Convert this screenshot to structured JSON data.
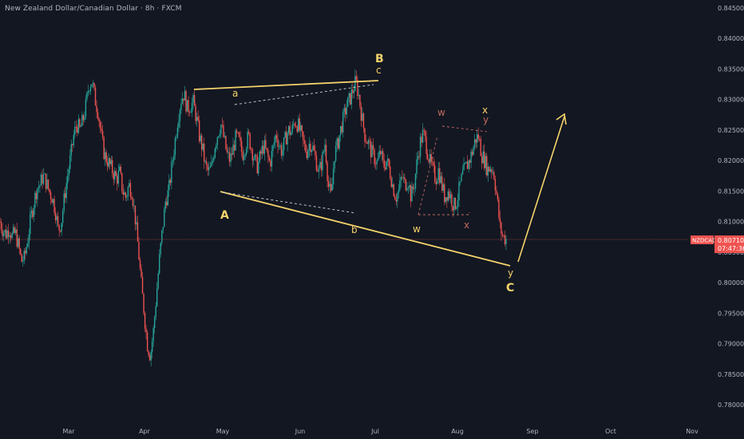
{
  "header": {
    "title": "New Zealand Dollar/Canadian Dollar · 8h · FXCM"
  },
  "colors": {
    "background": "#131722",
    "candle_up": "#26a69a",
    "candle_down": "#ef5350",
    "wave_line": "#f5d36b",
    "wave_label": "#f5d36b",
    "sub_label": "#c06a5e",
    "dashed": "#b7a6c8",
    "price_line": "#ef5350",
    "axis_text": "#b2b5be",
    "price_tag_bg": "#ef5350"
  },
  "price_tag": {
    "symbol": "NZDCAD",
    "price": "0.80710",
    "countdown": "07:47:36"
  },
  "chart_data": {
    "type": "candlestick",
    "symbol": "NZDCAD",
    "timeframe": "8h",
    "ylim": [
      0.778,
      0.846
    ],
    "y_ticks": [
      "0.84500",
      "0.84000",
      "0.83500",
      "0.83000",
      "0.82500",
      "0.82000",
      "0.81500",
      "0.81000",
      "0.80500",
      "0.80000",
      "0.79500",
      "0.79000",
      "0.78500",
      "0.78000"
    ],
    "x_ticks": [
      "Mar",
      "Apr",
      "May",
      "Jun",
      "Jul",
      "Aug",
      "Sep",
      "Oct",
      "Nov"
    ],
    "last_price": 0.8071,
    "price_path": [
      [
        0.81,
        0.8085,
        0.808,
        0.809,
        0.8075,
        0.8082,
        0.806,
        0.8035,
        0.804,
        0.807,
        0.8105,
        0.813,
        0.8155,
        0.816,
        0.8175,
        0.8165,
        0.815,
        0.814,
        0.812,
        0.8085,
        0.81,
        0.814,
        0.8175,
        0.8205,
        0.824,
        0.826,
        0.825,
        0.8265,
        0.829,
        0.8325,
        0.833,
        0.83,
        0.828,
        0.824,
        0.821,
        0.82,
        0.819,
        0.818,
        0.817,
        0.818,
        0.815,
        0.814,
        0.816,
        0.815,
        0.811,
        0.806,
        0.8,
        0.795,
        0.79,
        0.788,
        0.792,
        0.798,
        0.804,
        0.809,
        0.8135,
        0.815,
        0.819,
        0.823,
        0.827,
        0.83,
        0.831,
        0.8285,
        0.829,
        0.8295,
        0.827,
        0.824,
        0.822,
        0.819,
        0.818,
        0.819,
        0.8225,
        0.8245,
        0.826,
        0.8235,
        0.821,
        0.82,
        0.822,
        0.824,
        0.823,
        0.821,
        0.8225,
        0.824,
        0.822,
        0.82,
        0.819,
        0.821,
        0.8225,
        0.821,
        0.8195,
        0.822,
        0.8245,
        0.8225,
        0.8215,
        0.8235,
        0.825,
        0.8245,
        0.8265,
        0.826,
        0.8245,
        0.8225,
        0.8215,
        0.823,
        0.822,
        0.82,
        0.818,
        0.82,
        0.823,
        0.816,
        0.814,
        0.821,
        0.8225,
        0.825,
        0.827,
        0.829,
        0.83,
        0.8315,
        0.833,
        0.8305,
        0.827,
        0.824,
        0.823,
        0.8215,
        0.8205,
        0.8195,
        0.8215,
        0.819,
        0.82,
        0.8185,
        0.816,
        0.814,
        0.815,
        0.8175,
        0.816,
        0.817,
        0.814,
        0.816,
        0.82,
        0.823,
        0.8245,
        0.8225,
        0.82,
        0.8185,
        0.817,
        0.8185,
        0.816,
        0.814,
        0.815,
        0.814,
        0.8125,
        0.8135,
        0.816,
        0.818,
        0.819,
        0.82,
        0.8215,
        0.8235,
        0.824,
        0.821,
        0.82,
        0.8185,
        0.819,
        0.818,
        0.814,
        0.809,
        0.8075,
        0.8071
      ]
    ],
    "annotations": {
      "wave_labels": [
        "A",
        "B",
        "C",
        "a",
        "b",
        "c",
        "w",
        "x",
        "y",
        "w",
        "x",
        "y",
        "x",
        "y"
      ],
      "projection": "arrow upward after C"
    }
  },
  "labels": {
    "A": "A",
    "B": "B",
    "C": "C",
    "a": "a",
    "b": "b",
    "c": "c",
    "w": "w",
    "x": "x",
    "y": "y"
  }
}
